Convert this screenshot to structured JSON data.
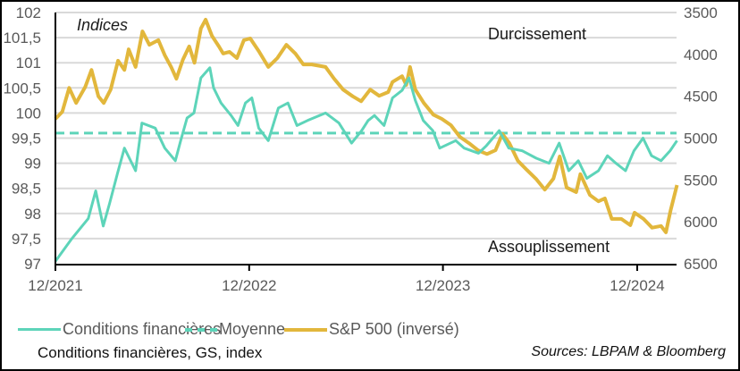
{
  "chart_data": {
    "type": "line",
    "annotations": {
      "top_left": "Indices",
      "top": "Durcissement",
      "bottom": "Assouplissement"
    },
    "x_ticks": [
      "12/2021",
      "12/2022",
      "12/2023",
      "12/2024"
    ],
    "x_tick_dates": [
      "2021-12-01",
      "2022-12-01",
      "2023-12-01",
      "2024-12-01"
    ],
    "x_range": [
      "2021-12-01",
      "2025-02-14"
    ],
    "y_left": {
      "range": [
        97,
        102
      ],
      "ticks": [
        "97",
        "97,5",
        "98",
        "98,5",
        "99",
        "99,5",
        "100",
        "100,5",
        "101",
        "101,5",
        "102"
      ],
      "tick_values": [
        97,
        97.5,
        98,
        98.5,
        99,
        99.5,
        100,
        100.5,
        101,
        101.5,
        102
      ]
    },
    "y_right": {
      "range": [
        3500,
        6500
      ],
      "inverted": true,
      "ticks": [
        "3500",
        "4000",
        "4500",
        "5000",
        "5500",
        "6000",
        "6500"
      ],
      "tick_values": [
        3500,
        4000,
        4500,
        5000,
        5500,
        6000,
        6500
      ]
    },
    "grid": true,
    "legend_placement": "bottom",
    "series": [
      {
        "name": "Conditions financières",
        "axis": "left",
        "color": "#5dd4b9",
        "style": "solid",
        "points": [
          [
            "2021-12-01",
            97.05
          ],
          [
            "2022-01-01",
            97.5
          ],
          [
            "2022-02-01",
            97.9
          ],
          [
            "2022-02-15",
            98.45
          ],
          [
            "2022-03-01",
            97.75
          ],
          [
            "2022-03-13",
            98.2
          ],
          [
            "2022-03-28",
            98.8
          ],
          [
            "2022-04-10",
            99.3
          ],
          [
            "2022-05-01",
            98.85
          ],
          [
            "2022-05-13",
            99.8
          ],
          [
            "2022-06-07",
            99.7
          ],
          [
            "2022-06-25",
            99.3
          ],
          [
            "2022-07-15",
            99.05
          ],
          [
            "2022-07-25",
            99.45
          ],
          [
            "2022-08-06",
            99.9
          ],
          [
            "2022-08-19",
            100.0
          ],
          [
            "2022-09-01",
            100.7
          ],
          [
            "2022-09-18",
            100.9
          ],
          [
            "2022-09-25",
            100.5
          ],
          [
            "2022-10-09",
            100.2
          ],
          [
            "2022-10-28",
            99.95
          ],
          [
            "2022-11-10",
            99.75
          ],
          [
            "2022-11-24",
            100.2
          ],
          [
            "2022-12-06",
            100.3
          ],
          [
            "2022-12-19",
            99.7
          ],
          [
            "2023-01-06",
            99.45
          ],
          [
            "2023-01-25",
            100.1
          ],
          [
            "2023-02-12",
            100.2
          ],
          [
            "2023-03-01",
            99.75
          ],
          [
            "2023-03-21",
            99.85
          ],
          [
            "2023-04-24",
            100.0
          ],
          [
            "2023-05-19",
            99.8
          ],
          [
            "2023-06-12",
            99.4
          ],
          [
            "2023-07-01",
            99.65
          ],
          [
            "2023-07-13",
            99.85
          ],
          [
            "2023-07-25",
            99.95
          ],
          [
            "2023-08-12",
            99.75
          ],
          [
            "2023-08-28",
            100.3
          ],
          [
            "2023-09-15",
            100.45
          ],
          [
            "2023-09-28",
            100.7
          ],
          [
            "2023-10-10",
            100.25
          ],
          [
            "2023-10-25",
            99.85
          ],
          [
            "2023-11-12",
            99.65
          ],
          [
            "2023-11-25",
            99.3
          ],
          [
            "2023-12-25",
            99.45
          ],
          [
            "2024-01-10",
            99.3
          ],
          [
            "2024-02-06",
            99.2
          ],
          [
            "2024-02-21",
            99.35
          ],
          [
            "2024-03-16",
            99.65
          ],
          [
            "2024-04-03",
            99.3
          ],
          [
            "2024-04-28",
            99.25
          ],
          [
            "2024-05-25",
            99.1
          ],
          [
            "2024-06-18",
            99.0
          ],
          [
            "2024-07-07",
            99.4
          ],
          [
            "2024-07-25",
            98.85
          ],
          [
            "2024-08-12",
            99.05
          ],
          [
            "2024-08-28",
            98.7
          ],
          [
            "2024-09-19",
            98.85
          ],
          [
            "2024-10-06",
            99.15
          ],
          [
            "2024-10-22",
            99.0
          ],
          [
            "2024-11-09",
            98.85
          ],
          [
            "2024-11-25",
            99.25
          ],
          [
            "2024-12-12",
            99.5
          ],
          [
            "2024-12-28",
            99.15
          ],
          [
            "2025-01-15",
            99.05
          ],
          [
            "2025-02-01",
            99.25
          ],
          [
            "2025-02-14",
            99.45
          ]
        ]
      },
      {
        "name": "Moyenne",
        "axis": "left",
        "color": "#5dd4b9",
        "style": "dashed",
        "value": 99.6
      },
      {
        "name": "S&P 500 (inversé)",
        "axis": "right",
        "color": "#e2b73c",
        "style": "solid",
        "points": [
          [
            "2021-12-01",
            4770
          ],
          [
            "2021-12-14",
            4685
          ],
          [
            "2021-12-27",
            4400
          ],
          [
            "2022-01-09",
            4580
          ],
          [
            "2022-01-26",
            4390
          ],
          [
            "2022-02-07",
            4185
          ],
          [
            "2022-02-20",
            4500
          ],
          [
            "2022-03-02",
            4580
          ],
          [
            "2022-03-15",
            4420
          ],
          [
            "2022-03-29",
            4075
          ],
          [
            "2022-04-10",
            4185
          ],
          [
            "2022-04-18",
            3940
          ],
          [
            "2022-05-01",
            4150
          ],
          [
            "2022-05-14",
            3725
          ],
          [
            "2022-05-27",
            3885
          ],
          [
            "2022-06-13",
            3830
          ],
          [
            "2022-06-25",
            4010
          ],
          [
            "2022-07-07",
            4150
          ],
          [
            "2022-07-17",
            4290
          ],
          [
            "2022-07-29",
            4065
          ],
          [
            "2022-08-10",
            3905
          ],
          [
            "2022-08-20",
            4100
          ],
          [
            "2022-09-01",
            3690
          ],
          [
            "2022-09-10",
            3585
          ],
          [
            "2022-09-22",
            3780
          ],
          [
            "2022-10-05",
            3905
          ],
          [
            "2022-10-13",
            3990
          ],
          [
            "2022-10-25",
            3970
          ],
          [
            "2022-11-08",
            4045
          ],
          [
            "2022-11-21",
            3830
          ],
          [
            "2022-12-03",
            3810
          ],
          [
            "2022-12-19",
            3960
          ],
          [
            "2023-01-06",
            4150
          ],
          [
            "2023-01-23",
            4045
          ],
          [
            "2023-02-09",
            3885
          ],
          [
            "2023-02-26",
            3990
          ],
          [
            "2023-03-13",
            4120
          ],
          [
            "2023-03-29",
            4120
          ],
          [
            "2023-04-24",
            4150
          ],
          [
            "2023-05-10",
            4290
          ],
          [
            "2023-05-27",
            4420
          ],
          [
            "2023-06-14",
            4500
          ],
          [
            "2023-06-30",
            4560
          ],
          [
            "2023-07-17",
            4420
          ],
          [
            "2023-08-03",
            4495
          ],
          [
            "2023-08-20",
            4450
          ],
          [
            "2023-08-28",
            4330
          ],
          [
            "2023-09-15",
            4260
          ],
          [
            "2023-09-23",
            4365
          ],
          [
            "2023-09-30",
            4150
          ],
          [
            "2023-10-10",
            4420
          ],
          [
            "2023-10-26",
            4580
          ],
          [
            "2023-11-13",
            4720
          ],
          [
            "2023-11-29",
            4770
          ],
          [
            "2023-12-16",
            4845
          ],
          [
            "2024-01-02",
            4985
          ],
          [
            "2024-01-19",
            5060
          ],
          [
            "2024-02-05",
            5145
          ],
          [
            "2024-02-22",
            5190
          ],
          [
            "2024-03-09",
            5145
          ],
          [
            "2024-03-22",
            4950
          ],
          [
            "2024-04-04",
            5060
          ],
          [
            "2024-04-20",
            5270
          ],
          [
            "2024-05-07",
            5380
          ],
          [
            "2024-05-24",
            5485
          ],
          [
            "2024-06-10",
            5615
          ],
          [
            "2024-06-26",
            5485
          ],
          [
            "2024-07-08",
            5220
          ],
          [
            "2024-07-21",
            5590
          ],
          [
            "2024-08-08",
            5645
          ],
          [
            "2024-08-16",
            5430
          ],
          [
            "2024-09-03",
            5680
          ],
          [
            "2024-09-19",
            5755
          ],
          [
            "2024-10-01",
            5720
          ],
          [
            "2024-10-14",
            5965
          ],
          [
            "2024-11-01",
            5965
          ],
          [
            "2024-11-18",
            6040
          ],
          [
            "2024-11-26",
            5890
          ],
          [
            "2024-12-13",
            5965
          ],
          [
            "2024-12-29",
            6070
          ],
          [
            "2025-01-15",
            6050
          ],
          [
            "2025-01-24",
            6125
          ],
          [
            "2025-02-02",
            5860
          ],
          [
            "2025-02-14",
            5560
          ]
        ]
      }
    ]
  },
  "legend": {
    "items": [
      "Conditions financières",
      "Moyenne",
      "S&P 500 (inversé)"
    ]
  },
  "footer": {
    "left": "Conditions financières, GS, index",
    "right": "Sources: LBPAM & Bloomberg"
  }
}
